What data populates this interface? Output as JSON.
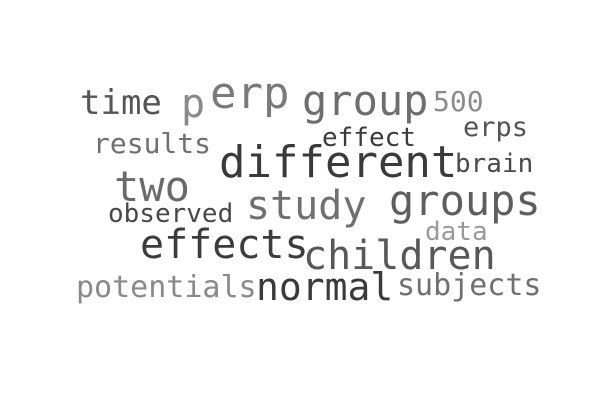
{
  "word_cloud": {
    "words": [
      {
        "text": "time",
        "color": "#555555"
      },
      {
        "text": "p",
        "color": "#8a8a8a"
      },
      {
        "text": "erp",
        "color": "#7a7a7a"
      },
      {
        "text": "group",
        "color": "#6e6e6e"
      },
      {
        "text": "500",
        "color": "#8c8c8c"
      },
      {
        "text": "results",
        "color": "#707070"
      },
      {
        "text": "effect",
        "color": "#3b3b3b"
      },
      {
        "text": "erps",
        "color": "#545454"
      },
      {
        "text": "different",
        "color": "#3a3a3a"
      },
      {
        "text": "brain",
        "color": "#4a4a4a"
      },
      {
        "text": "two",
        "color": "#6a6a6a"
      },
      {
        "text": "study",
        "color": "#707070"
      },
      {
        "text": "groups",
        "color": "#5e5e5e"
      },
      {
        "text": "observed",
        "color": "#484848"
      },
      {
        "text": "effects",
        "color": "#3c3c3c"
      },
      {
        "text": "data",
        "color": "#9a9a9a"
      },
      {
        "text": "children",
        "color": "#585858"
      },
      {
        "text": "potentials",
        "color": "#8a8a8a"
      },
      {
        "text": "normal",
        "color": "#3a3a3a"
      },
      {
        "text": "subjects",
        "color": "#707070"
      }
    ]
  }
}
